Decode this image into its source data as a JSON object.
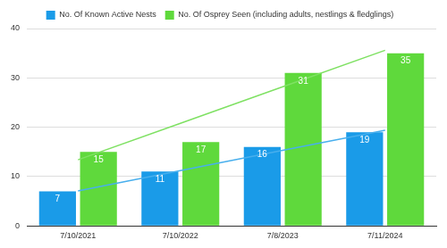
{
  "chart_data": {
    "type": "bar",
    "categories": [
      "7/10/2021",
      "7/10/2022",
      "7/8/2023",
      "7/11/2024"
    ],
    "series": [
      {
        "name": "No. Of Known Active Nests",
        "color": "#1a9be8",
        "values": [
          7,
          11,
          16,
          19
        ],
        "trend": [
          7.1,
          11.2,
          15.3,
          19.4
        ]
      },
      {
        "name": "No. Of Osprey Seen (including adults, nestlings & fledglings)",
        "color": "#5fd93c",
        "values": [
          15,
          17,
          31,
          35
        ],
        "trend": [
          13.4,
          20.8,
          28.2,
          35.6
        ]
      }
    ],
    "ylim": [
      0,
      40
    ],
    "yticks": [
      0,
      10,
      20,
      30,
      40
    ],
    "grid": true,
    "legend": "top",
    "data_labels": true
  }
}
